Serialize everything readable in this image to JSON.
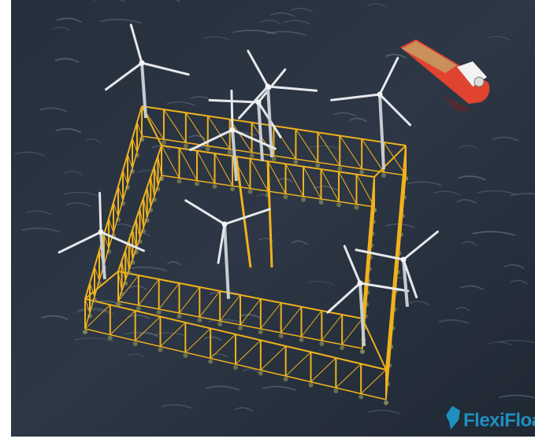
{
  "logo": {
    "text": "FlexiFloat"
  }
}
